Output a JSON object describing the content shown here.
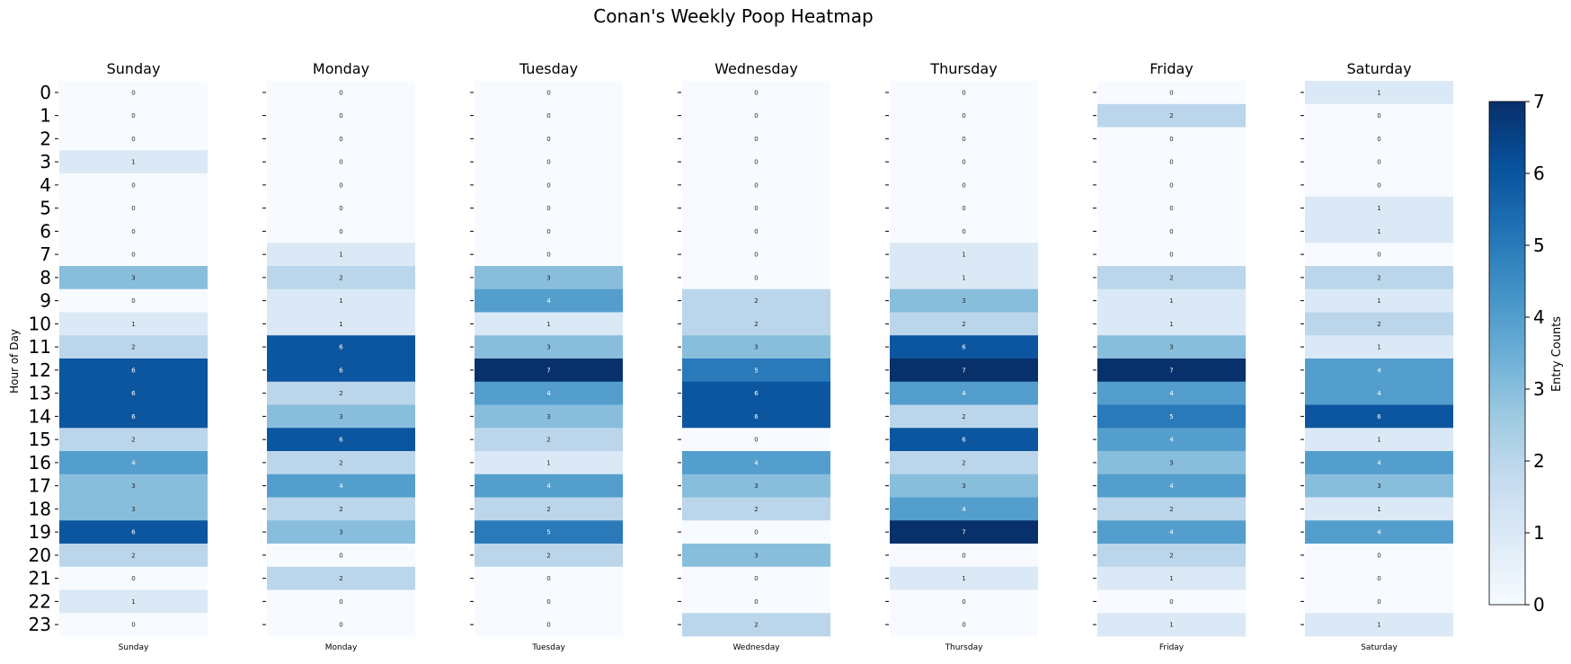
{
  "chart_data": {
    "type": "heatmap",
    "title": "Conan's Weekly Poop Heatmap",
    "ylabel": "Hour of Day",
    "colorbar_label": "Entry Counts",
    "colorbar_ticks": [
      "0",
      "1",
      "2",
      "3",
      "4",
      "5",
      "6",
      "7"
    ],
    "vmin": 0,
    "vmax": 7,
    "colormap": "Blues",
    "hours": [
      "0",
      "1",
      "2",
      "3",
      "4",
      "5",
      "6",
      "7",
      "8",
      "9",
      "10",
      "11",
      "12",
      "13",
      "14",
      "15",
      "16",
      "17",
      "18",
      "19",
      "20",
      "21",
      "22",
      "23"
    ],
    "days": [
      {
        "name": "Sunday",
        "values": [
          0,
          0,
          0,
          1,
          0,
          0,
          0,
          0,
          3,
          0,
          1,
          2,
          6,
          6,
          6,
          2,
          4,
          3,
          3,
          6,
          2,
          0,
          1,
          0
        ]
      },
      {
        "name": "Monday",
        "values": [
          0,
          0,
          0,
          0,
          0,
          0,
          0,
          1,
          2,
          1,
          1,
          6,
          6,
          2,
          3,
          6,
          2,
          4,
          2,
          3,
          0,
          2,
          0,
          0
        ]
      },
      {
        "name": "Tuesday",
        "values": [
          0,
          0,
          0,
          0,
          0,
          0,
          0,
          0,
          3,
          4,
          1,
          3,
          7,
          4,
          3,
          2,
          1,
          4,
          2,
          5,
          2,
          0,
          0,
          0
        ]
      },
      {
        "name": "Wednesday",
        "values": [
          0,
          0,
          0,
          0,
          0,
          0,
          0,
          0,
          0,
          2,
          2,
          3,
          5,
          6,
          6,
          0,
          4,
          3,
          2,
          0,
          3,
          0,
          0,
          2
        ]
      },
      {
        "name": "Thursday",
        "values": [
          0,
          0,
          0,
          0,
          0,
          0,
          0,
          1,
          1,
          3,
          2,
          6,
          7,
          4,
          2,
          6,
          2,
          3,
          4,
          7,
          0,
          1,
          0,
          0
        ]
      },
      {
        "name": "Friday",
        "values": [
          0,
          2,
          0,
          0,
          0,
          0,
          0,
          0,
          2,
          1,
          1,
          3,
          7,
          4,
          5,
          4,
          3,
          4,
          2,
          4,
          2,
          1,
          0,
          1
        ]
      },
      {
        "name": "Saturday",
        "values": [
          1,
          0,
          0,
          0,
          0,
          1,
          1,
          0,
          2,
          1,
          2,
          1,
          4,
          4,
          6,
          1,
          4,
          3,
          1,
          4,
          0,
          0,
          0,
          1
        ]
      }
    ]
  }
}
